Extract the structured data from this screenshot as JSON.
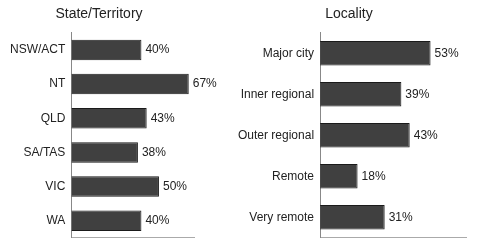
{
  "chart_data": [
    {
      "type": "bar",
      "title": "State/Territory",
      "orientation": "horizontal",
      "categories": [
        "NSW/ACT",
        "NT",
        "QLD",
        "SA/TAS",
        "VIC",
        "WA"
      ],
      "values": [
        40,
        67,
        43,
        38,
        50,
        40
      ],
      "value_labels": [
        "40%",
        "67%",
        "43%",
        "38%",
        "50%",
        "40%"
      ],
      "color": "#404040",
      "xlim": [
        0,
        70
      ],
      "grid": false,
      "data_labels": true,
      "tick_labels": "y"
    },
    {
      "type": "bar",
      "title": "Locality",
      "orientation": "horizontal",
      "categories": [
        "Major city",
        "Inner regional",
        "Outer regional",
        "Remote",
        "Very remote"
      ],
      "values": [
        53,
        39,
        43,
        18,
        31
      ],
      "value_labels": [
        "53%",
        "39%",
        "43%",
        "18%",
        "31%"
      ],
      "color": "#404040",
      "xlim": [
        0,
        70
      ],
      "grid": false,
      "data_labels": true,
      "tick_labels": "y"
    }
  ]
}
